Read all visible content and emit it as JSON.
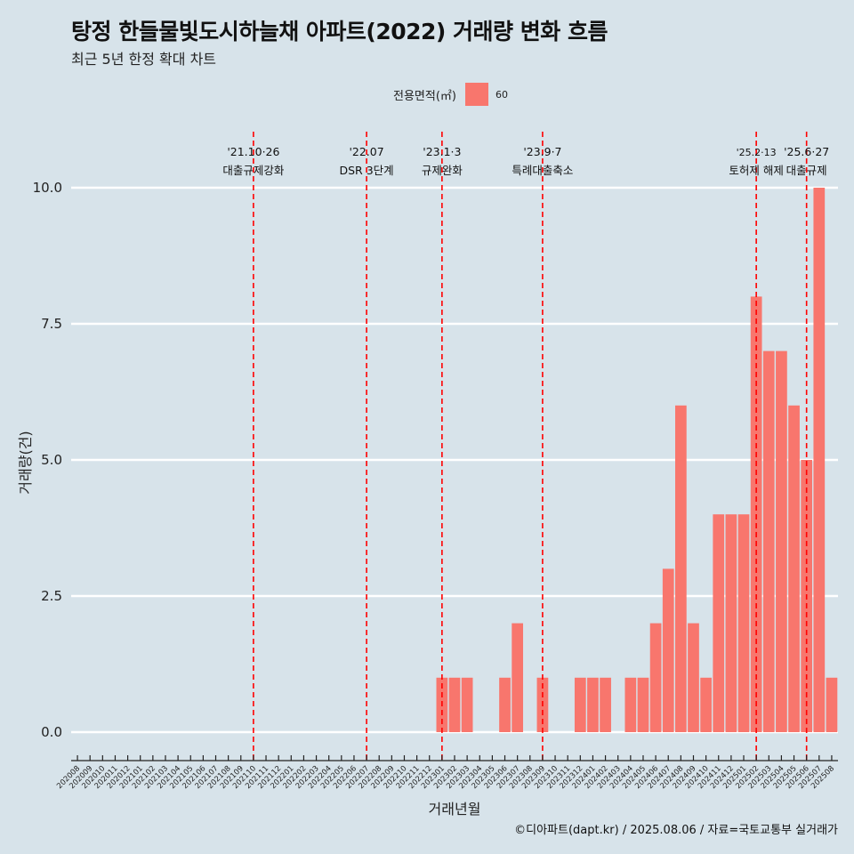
{
  "title": "탕정 한들물빛도시하늘채 아파트(2022) 거래량 변화 흐름",
  "subtitle": "최근 5년 한정 확대 차트",
  "legend_title": "전용면적(㎡)",
  "caption": "©디아파트(dapt.kr) / 2025.08.06 / 자료=국토교통부 실거래가",
  "colors": {
    "bar": "#f8766d",
    "background": "#d7e3ea",
    "grid": "#ffffff",
    "event_line": "#ff0000"
  },
  "chart_data": {
    "type": "bar",
    "title": "탕정 한들물빛도시하늘채 아파트(2022) 거래량 변화 흐름",
    "subtitle": "최근 5년 한정 확대 차트",
    "xlabel": "거래년월",
    "ylabel": "거래량(건)",
    "ylim": [
      0,
      10
    ],
    "yticks": [
      "0.0",
      "2.5",
      "5.0",
      "7.5",
      "10.0"
    ],
    "grid": true,
    "legend_position": "top",
    "categories": [
      "202008",
      "202009",
      "202010",
      "202011",
      "202012",
      "202101",
      "202102",
      "202103",
      "202104",
      "202105",
      "202106",
      "202107",
      "202108",
      "202109",
      "202110",
      "202111",
      "202112",
      "202201",
      "202202",
      "202203",
      "202204",
      "202205",
      "202206",
      "202207",
      "202208",
      "202209",
      "202210",
      "202211",
      "202212",
      "202301",
      "202302",
      "202303",
      "202304",
      "202305",
      "202306",
      "202307",
      "202308",
      "202309",
      "202310",
      "202311",
      "202312",
      "202401",
      "202402",
      "202403",
      "202404",
      "202405",
      "202406",
      "202407",
      "202408",
      "202409",
      "202410",
      "202411",
      "202412",
      "202501",
      "202502",
      "202503",
      "202504",
      "202505",
      "202506",
      "202507",
      "202508"
    ],
    "series": [
      {
        "name": "60",
        "values": [
          0,
          0,
          0,
          0,
          0,
          0,
          0,
          0,
          0,
          0,
          0,
          0,
          0,
          0,
          0,
          0,
          0,
          0,
          0,
          0,
          0,
          0,
          0,
          0,
          0,
          0,
          0,
          0,
          0,
          1,
          1,
          1,
          0,
          0,
          1,
          2,
          0,
          1,
          0,
          0,
          1,
          1,
          1,
          0,
          1,
          1,
          2,
          3,
          6,
          2,
          1,
          4,
          4,
          4,
          8,
          7,
          7,
          6,
          5,
          10,
          1
        ]
      }
    ],
    "events": [
      {
        "category": "202110",
        "date": "'21.10·26",
        "label": "대출규제강화"
      },
      {
        "category": "202207",
        "date": "'22.07",
        "label": "DSR 3단계"
      },
      {
        "category": "202301",
        "date": "'23.1·3",
        "label": "규제완화"
      },
      {
        "category": "202309",
        "date": "'23.9·7",
        "label": "특례대출축소"
      },
      {
        "category": "202502",
        "date": "'25.2·13",
        "label": "토허제 해제"
      },
      {
        "category": "202506",
        "date": "'25.6·27",
        "label": "대출규제"
      }
    ]
  }
}
